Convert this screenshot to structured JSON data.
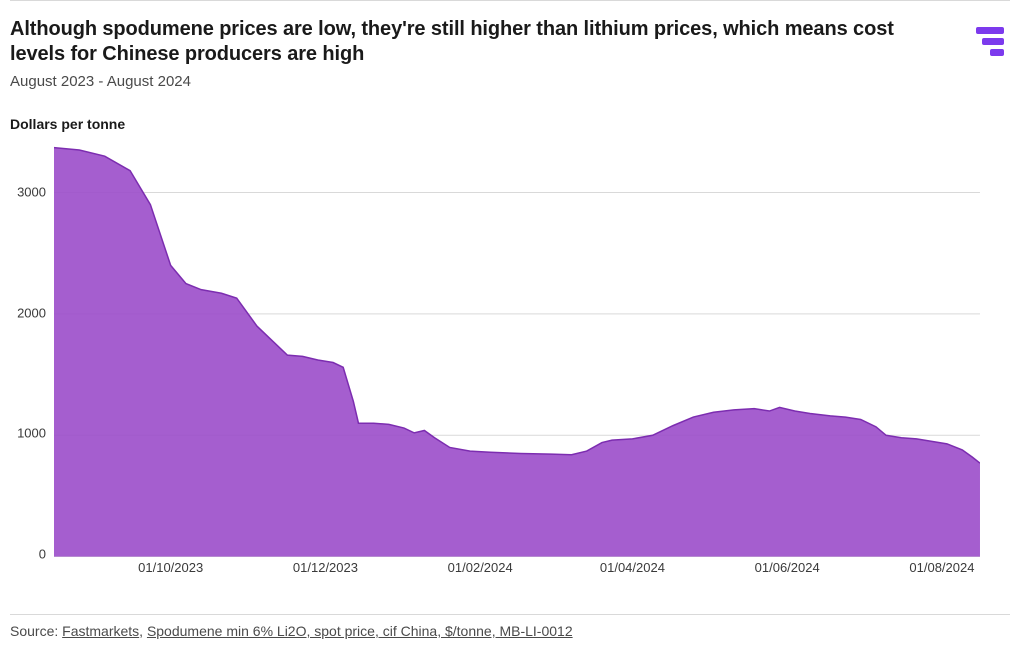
{
  "header": {
    "title": "Although spodumene prices are low, they're still higher than lithium prices, which means cost levels for Chinese producers are high",
    "subtitle": "August 2023 - August 2024"
  },
  "logo": {
    "color": "#7c3aed",
    "bars": [
      28,
      22,
      14
    ]
  },
  "yaxis": {
    "label": "Dollars per tonne"
  },
  "footer": {
    "prefix": "Source: ",
    "link1": "Fastmarkets",
    "separator": ", ",
    "link2": "Spodumene min 6% Li2O, spot price, cif China, $/tonne, MB-LI-0012"
  },
  "chart": {
    "type": "area",
    "background_color": "#ffffff",
    "grid_color": "#d9d9d9",
    "axis_color": "#cfcfcf",
    "fill_color": "#9b4dca",
    "fill_opacity": 0.9,
    "stroke_color": "#7c2db0",
    "stroke_width": 1.5,
    "label_fontsize": 13,
    "label_color": "#3a3a3a",
    "y": {
      "min": 0,
      "max": 3400,
      "ticks": [
        0,
        1000,
        2000,
        3000
      ]
    },
    "x": {
      "min": 0,
      "max": 365,
      "tick_positions": [
        46,
        107,
        168,
        228,
        289,
        350
      ],
      "tick_labels": [
        "01/10/2023",
        "01/12/2023",
        "01/02/2024",
        "01/04/2024",
        "01/06/2024",
        "01/08/2024"
      ]
    },
    "series": [
      {
        "x": 0,
        "y": 3370
      },
      {
        "x": 10,
        "y": 3350
      },
      {
        "x": 20,
        "y": 3300
      },
      {
        "x": 30,
        "y": 3180
      },
      {
        "x": 38,
        "y": 2900
      },
      {
        "x": 46,
        "y": 2400
      },
      {
        "x": 52,
        "y": 2250
      },
      {
        "x": 58,
        "y": 2200
      },
      {
        "x": 66,
        "y": 2170
      },
      {
        "x": 72,
        "y": 2130
      },
      {
        "x": 80,
        "y": 1900
      },
      {
        "x": 86,
        "y": 1780
      },
      {
        "x": 92,
        "y": 1660
      },
      {
        "x": 98,
        "y": 1650
      },
      {
        "x": 104,
        "y": 1620
      },
      {
        "x": 110,
        "y": 1600
      },
      {
        "x": 114,
        "y": 1560
      },
      {
        "x": 118,
        "y": 1280
      },
      {
        "x": 120,
        "y": 1100
      },
      {
        "x": 126,
        "y": 1100
      },
      {
        "x": 132,
        "y": 1090
      },
      {
        "x": 138,
        "y": 1060
      },
      {
        "x": 142,
        "y": 1020
      },
      {
        "x": 146,
        "y": 1040
      },
      {
        "x": 150,
        "y": 980
      },
      {
        "x": 156,
        "y": 900
      },
      {
        "x": 164,
        "y": 870
      },
      {
        "x": 172,
        "y": 860
      },
      {
        "x": 184,
        "y": 850
      },
      {
        "x": 196,
        "y": 845
      },
      {
        "x": 204,
        "y": 840
      },
      {
        "x": 210,
        "y": 870
      },
      {
        "x": 216,
        "y": 940
      },
      {
        "x": 220,
        "y": 960
      },
      {
        "x": 228,
        "y": 970
      },
      {
        "x": 236,
        "y": 1000
      },
      {
        "x": 244,
        "y": 1080
      },
      {
        "x": 252,
        "y": 1150
      },
      {
        "x": 260,
        "y": 1190
      },
      {
        "x": 268,
        "y": 1210
      },
      {
        "x": 276,
        "y": 1220
      },
      {
        "x": 282,
        "y": 1200
      },
      {
        "x": 286,
        "y": 1230
      },
      {
        "x": 292,
        "y": 1200
      },
      {
        "x": 298,
        "y": 1180
      },
      {
        "x": 306,
        "y": 1160
      },
      {
        "x": 312,
        "y": 1150
      },
      {
        "x": 318,
        "y": 1130
      },
      {
        "x": 324,
        "y": 1070
      },
      {
        "x": 328,
        "y": 1000
      },
      {
        "x": 334,
        "y": 980
      },
      {
        "x": 340,
        "y": 970
      },
      {
        "x": 346,
        "y": 950
      },
      {
        "x": 352,
        "y": 930
      },
      {
        "x": 358,
        "y": 880
      },
      {
        "x": 362,
        "y": 820
      },
      {
        "x": 365,
        "y": 770
      }
    ]
  }
}
